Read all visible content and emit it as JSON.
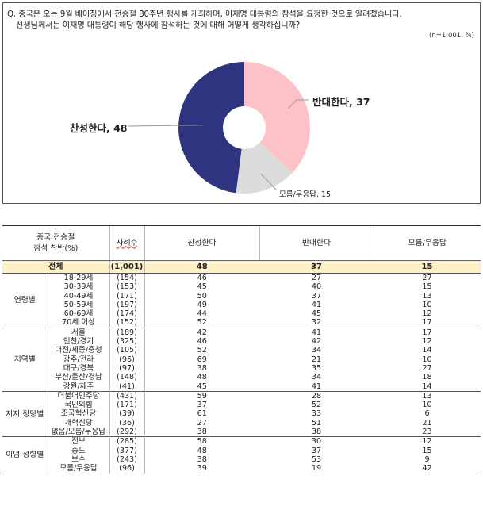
{
  "question": {
    "line1": "Q. 중국은 오는 9월 베이징에서 전승절 80주년 행사를 개최하며, 이재명 대통령의 참석을 요청한 것으로 알려졌습니다.",
    "line2": "선생님께서는 이재명 대통령이 해당 행사에 참석하는 것에 대해 어떻게 생각하십니까?",
    "note": "(n=1,001, %)"
  },
  "colors": {
    "support": "#2e3480",
    "oppose": "#fcc2c8",
    "unknown": "#dcdcdc",
    "total_row": "#fdefc6"
  },
  "chart_data": {
    "type": "pie",
    "donut": true,
    "slices": [
      {
        "label": "찬성한다",
        "value": 48,
        "text": "찬성한다, 48"
      },
      {
        "label": "반대한다",
        "value": 37,
        "text": "반대한다, 37"
      },
      {
        "label": "모름/무응답",
        "value": 15,
        "text": "모름/무응답, 15"
      }
    ]
  },
  "table": {
    "headers": {
      "group_line1": "중국 전승절",
      "group_line2": "참석 찬반(%)",
      "n": "사례수",
      "support": "찬성한다",
      "oppose": "반대한다",
      "unknown": "모름/무응답"
    },
    "total": {
      "label": "전체",
      "n": "(1,001)",
      "values": [
        "48",
        "37",
        "15"
      ]
    },
    "groups": [
      {
        "name": "연령별",
        "rows": [
          {
            "label": "18-29세",
            "n": "(154)",
            "values": [
              "46",
              "27",
              "27"
            ]
          },
          {
            "label": "30-39세",
            "n": "(153)",
            "values": [
              "45",
              "40",
              "15"
            ]
          },
          {
            "label": "40-49세",
            "n": "(171)",
            "values": [
              "50",
              "37",
              "13"
            ]
          },
          {
            "label": "50-59세",
            "n": "(197)",
            "values": [
              "49",
              "41",
              "10"
            ]
          },
          {
            "label": "60-69세",
            "n": "(174)",
            "values": [
              "44",
              "45",
              "12"
            ]
          },
          {
            "label": "70세 이상",
            "n": "(152)",
            "values": [
              "52",
              "32",
              "17"
            ]
          }
        ]
      },
      {
        "name": "지역별",
        "rows": [
          {
            "label": "서울",
            "n": "(189)",
            "values": [
              "42",
              "41",
              "17"
            ]
          },
          {
            "label": "인천/경기",
            "n": "(325)",
            "values": [
              "46",
              "42",
              "12"
            ]
          },
          {
            "label": "대전/세종/충청",
            "n": "(105)",
            "values": [
              "52",
              "34",
              "14"
            ]
          },
          {
            "label": "광주/전라",
            "n": "(96)",
            "values": [
              "69",
              "21",
              "10"
            ]
          },
          {
            "label": "대구/경북",
            "n": "(97)",
            "values": [
              "38",
              "35",
              "27"
            ]
          },
          {
            "label": "부산/울산/경남",
            "n": "(148)",
            "values": [
              "48",
              "34",
              "18"
            ]
          },
          {
            "label": "강원/제주",
            "n": "(41)",
            "values": [
              "45",
              "41",
              "14"
            ]
          }
        ]
      },
      {
        "name": "지지 정당별",
        "rows": [
          {
            "label": "더불어민주당",
            "n": "(431)",
            "values": [
              "59",
              "28",
              "13"
            ]
          },
          {
            "label": "국민의힘",
            "n": "(171)",
            "values": [
              "37",
              "52",
              "10"
            ]
          },
          {
            "label": "조국혁신당",
            "n": "(39)",
            "values": [
              "61",
              "33",
              "6"
            ]
          },
          {
            "label": "개혁신당",
            "n": "(36)",
            "values": [
              "27",
              "51",
              "21"
            ]
          },
          {
            "label": "없음/모름/무응답",
            "n": "(292)",
            "values": [
              "38",
              "38",
              "23"
            ]
          }
        ]
      },
      {
        "name": "이념 성향별",
        "rows": [
          {
            "label": "진보",
            "n": "(285)",
            "values": [
              "58",
              "30",
              "12"
            ]
          },
          {
            "label": "중도",
            "n": "(377)",
            "values": [
              "48",
              "37",
              "15"
            ]
          },
          {
            "label": "보수",
            "n": "(243)",
            "values": [
              "38",
              "53",
              "9"
            ]
          },
          {
            "label": "모름/무응답",
            "n": "(96)",
            "values": [
              "39",
              "19",
              "42"
            ]
          }
        ]
      }
    ]
  }
}
